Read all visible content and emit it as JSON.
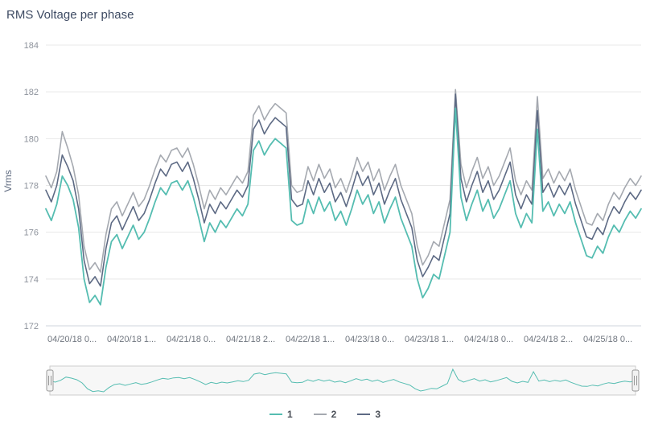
{
  "title": "RMS Voltage per phase",
  "chart_data": {
    "type": "line",
    "title": "RMS Voltage per phase",
    "xlabel": "",
    "ylabel": "Vrms",
    "ylim": [
      172,
      184
    ],
    "ytick_step": 2,
    "grid": true,
    "legend_position": "bottom-center",
    "has_navigator": true,
    "x_tick_labels": [
      "04/20/18 0...",
      "04/20/18 1...",
      "04/21/18 0...",
      "04/21/18 2...",
      "04/22/18 1...",
      "04/23/18 0...",
      "04/23/18 1...",
      "04/24/18 0...",
      "04/24/18 2...",
      "04/25/18 0..."
    ],
    "series": [
      {
        "name": "1",
        "color": "#55bdb1",
        "values": [
          177.0,
          176.5,
          177.2,
          178.4,
          178.0,
          177.4,
          176.2,
          174.0,
          173.0,
          173.3,
          172.9,
          174.5,
          175.6,
          175.9,
          175.3,
          175.8,
          176.3,
          175.7,
          176.0,
          176.6,
          177.3,
          177.9,
          177.6,
          178.1,
          178.2,
          177.8,
          178.2,
          177.5,
          176.6,
          175.6,
          176.4,
          176.0,
          176.5,
          176.2,
          176.6,
          177.0,
          176.7,
          177.2,
          179.5,
          179.9,
          179.3,
          179.7,
          180.0,
          179.8,
          179.6,
          176.5,
          176.3,
          176.4,
          177.4,
          176.8,
          177.5,
          176.9,
          177.3,
          176.5,
          176.9,
          176.3,
          177.0,
          177.8,
          177.2,
          177.6,
          176.8,
          177.3,
          176.4,
          177.0,
          177.5,
          176.6,
          176.0,
          175.4,
          174.0,
          173.2,
          173.6,
          174.2,
          174.0,
          175.0,
          176.0,
          181.3,
          177.5,
          176.5,
          177.2,
          177.8,
          176.9,
          177.4,
          176.6,
          177.0,
          177.6,
          178.2,
          176.8,
          176.2,
          176.8,
          176.4,
          180.4,
          176.9,
          177.3,
          176.7,
          177.2,
          176.8,
          177.3,
          176.4,
          175.7,
          175.0,
          174.9,
          175.4,
          175.1,
          175.8,
          176.3,
          176.0,
          176.5,
          176.9,
          176.6,
          177.0
        ]
      },
      {
        "name": "2",
        "color": "#a5a9b0",
        "values": [
          178.4,
          177.9,
          178.6,
          180.3,
          179.6,
          178.8,
          177.6,
          175.4,
          174.4,
          174.7,
          174.3,
          175.9,
          177.0,
          177.3,
          176.7,
          177.2,
          177.7,
          177.1,
          177.4,
          178.0,
          178.7,
          179.3,
          179.0,
          179.5,
          179.6,
          179.2,
          179.6,
          178.9,
          178.0,
          177.0,
          177.8,
          177.4,
          177.9,
          177.6,
          178.0,
          178.4,
          178.1,
          178.6,
          181.0,
          181.4,
          180.8,
          181.2,
          181.5,
          181.3,
          181.1,
          178.0,
          177.7,
          177.8,
          178.8,
          178.2,
          178.9,
          178.3,
          178.7,
          177.9,
          178.3,
          177.7,
          178.4,
          179.2,
          178.6,
          179.0,
          178.2,
          178.7,
          177.8,
          178.4,
          178.9,
          178.0,
          177.4,
          176.8,
          175.4,
          174.6,
          175.0,
          175.6,
          175.4,
          176.4,
          177.4,
          182.1,
          178.9,
          177.9,
          178.6,
          179.2,
          178.3,
          178.8,
          178.0,
          178.4,
          179.0,
          179.6,
          178.2,
          177.6,
          178.2,
          177.8,
          181.8,
          178.3,
          178.7,
          178.1,
          178.6,
          178.2,
          178.7,
          177.8,
          177.1,
          176.4,
          176.3,
          176.8,
          176.5,
          177.2,
          177.7,
          177.4,
          177.9,
          178.3,
          178.0,
          178.4
        ]
      },
      {
        "name": "3",
        "color": "#5d6a84",
        "values": [
          177.8,
          177.3,
          178.0,
          179.3,
          178.8,
          178.2,
          177.0,
          174.8,
          173.8,
          174.1,
          173.7,
          175.3,
          176.4,
          176.7,
          176.1,
          176.6,
          177.1,
          176.5,
          176.8,
          177.4,
          178.1,
          178.7,
          178.4,
          178.9,
          179.0,
          178.6,
          179.0,
          178.3,
          177.4,
          176.4,
          177.2,
          176.8,
          177.3,
          177.0,
          177.4,
          177.8,
          177.5,
          178.0,
          180.4,
          180.8,
          180.2,
          180.6,
          180.9,
          180.7,
          180.5,
          177.4,
          177.1,
          177.2,
          178.2,
          177.6,
          178.3,
          177.7,
          178.1,
          177.3,
          177.7,
          177.1,
          177.8,
          178.6,
          178.0,
          178.4,
          177.6,
          178.1,
          177.2,
          177.8,
          178.3,
          177.4,
          176.8,
          176.2,
          174.8,
          174.1,
          174.5,
          175.0,
          174.8,
          175.8,
          176.8,
          181.9,
          178.3,
          177.3,
          178.0,
          178.6,
          177.7,
          178.2,
          177.4,
          177.8,
          178.4,
          179.0,
          177.6,
          177.0,
          177.6,
          177.2,
          181.2,
          177.7,
          178.1,
          177.5,
          178.0,
          177.6,
          178.1,
          177.2,
          176.5,
          175.8,
          175.7,
          176.2,
          175.9,
          176.6,
          177.1,
          176.8,
          177.3,
          177.7,
          177.4,
          177.8
        ]
      }
    ]
  }
}
